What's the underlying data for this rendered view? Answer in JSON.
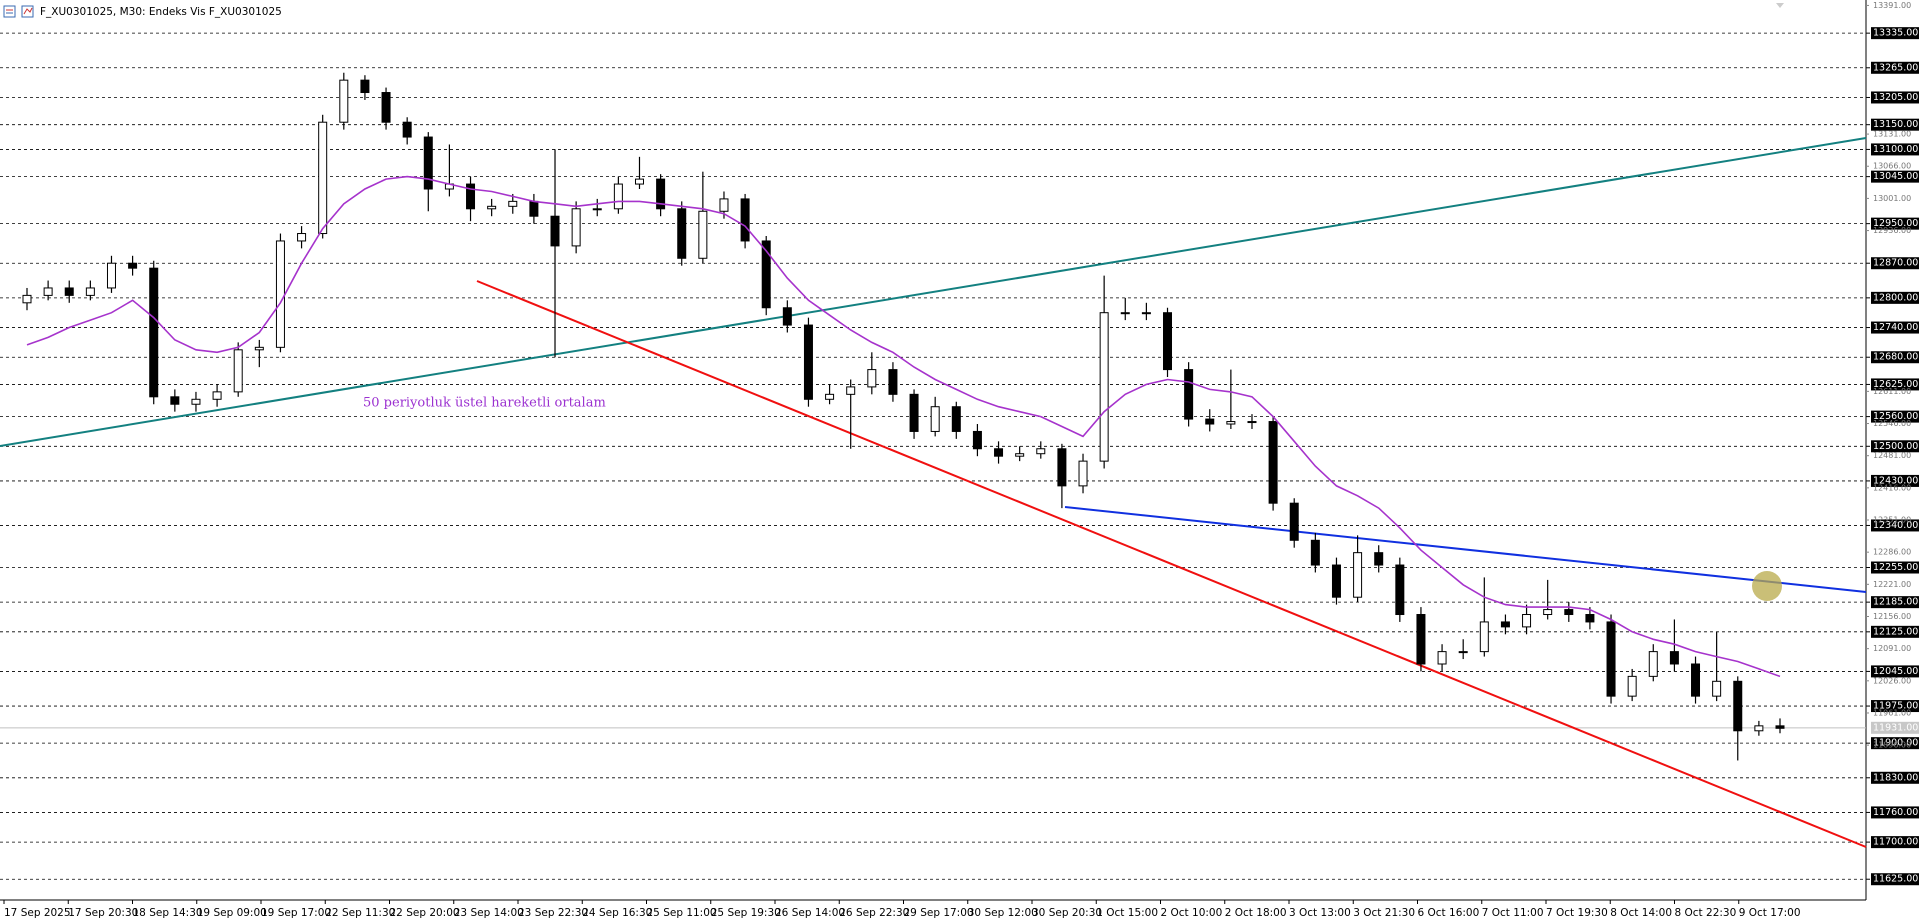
{
  "chart_data": {
    "type": "candlestick",
    "title": "F_XU0301025, M30:  Endeks Vis F_XU0301025",
    "annotation": "50 periyotluk üstel hareketli ortalam",
    "categories": [
      "17 Sep 2025",
      "17 Sep 20:30",
      "18 Sep 14:30",
      "19 Sep 09:00",
      "19 Sep 17:00",
      "22 Sep 11:30",
      "22 Sep 20:00",
      "23 Sep 14:00",
      "23 Sep 22:30",
      "24 Sep 16:30",
      "25 Sep 11:00",
      "25 Sep 19:30",
      "26 Sep 14:00",
      "26 Sep 22:30",
      "29 Sep 17:00",
      "30 Sep 12:00",
      "30 Sep 20:30",
      "1 Oct 15:00",
      "2 Oct 10:00",
      "2 Oct 18:00",
      "3 Oct 13:00",
      "3 Oct 21:30",
      "6 Oct 16:00",
      "7 Oct 11:00",
      "7 Oct 19:30",
      "8 Oct 14:00",
      "8 Oct 22:30",
      "9 Oct 17:00"
    ],
    "candles": [
      [
        12790,
        12820,
        12775,
        12805
      ],
      [
        12805,
        12835,
        12795,
        12820
      ],
      [
        12820,
        12835,
        12790,
        12805
      ],
      [
        12805,
        12835,
        12795,
        12820
      ],
      [
        12820,
        12885,
        12810,
        12870
      ],
      [
        12870,
        12885,
        12845,
        12860
      ],
      [
        12860,
        12875,
        12585,
        12600
      ],
      [
        12600,
        12615,
        12570,
        12585
      ],
      [
        12585,
        12610,
        12570,
        12595
      ],
      [
        12595,
        12625,
        12580,
        12610
      ],
      [
        12610,
        12710,
        12600,
        12695
      ],
      [
        12695,
        12715,
        12660,
        12700
      ],
      [
        12700,
        12930,
        12690,
        12915
      ],
      [
        12915,
        12945,
        12900,
        12930
      ],
      [
        12930,
        13170,
        12920,
        13155
      ],
      [
        13155,
        13255,
        13140,
        13240
      ],
      [
        13240,
        13250,
        13200,
        13215
      ],
      [
        13215,
        13225,
        13140,
        13155
      ],
      [
        13155,
        13165,
        13110,
        13125
      ],
      [
        13125,
        13135,
        12975,
        13020
      ],
      [
        13020,
        13110,
        13005,
        13030
      ],
      [
        13030,
        13045,
        12955,
        12980
      ],
      [
        12980,
        13000,
        12965,
        12985
      ],
      [
        12985,
        13010,
        12970,
        12995
      ],
      [
        12995,
        13010,
        12950,
        12965
      ],
      [
        12965,
        13100,
        12680,
        12905
      ],
      [
        12905,
        12995,
        12890,
        12980
      ],
      [
        12980,
        13000,
        12965,
        12980
      ],
      [
        12980,
        13045,
        12970,
        13030
      ],
      [
        13030,
        13085,
        13020,
        13040
      ],
      [
        13040,
        13050,
        12965,
        12980
      ],
      [
        12980,
        12995,
        12865,
        12880
      ],
      [
        12880,
        13055,
        12870,
        12975
      ],
      [
        12975,
        13015,
        12960,
        13000
      ],
      [
        13000,
        13010,
        12900,
        12915
      ],
      [
        12915,
        12925,
        12765,
        12780
      ],
      [
        12780,
        12795,
        12730,
        12745
      ],
      [
        12745,
        12760,
        12580,
        12595
      ],
      [
        12595,
        12625,
        12585,
        12605
      ],
      [
        12605,
        12635,
        12495,
        12620
      ],
      [
        12620,
        12690,
        12605,
        12655
      ],
      [
        12655,
        12670,
        12590,
        12605
      ],
      [
        12605,
        12615,
        12515,
        12530
      ],
      [
        12530,
        12600,
        12520,
        12580
      ],
      [
        12580,
        12590,
        12515,
        12530
      ],
      [
        12530,
        12545,
        12480,
        12495
      ],
      [
        12495,
        12510,
        12465,
        12480
      ],
      [
        12480,
        12500,
        12470,
        12485
      ],
      [
        12485,
        12510,
        12475,
        12495
      ],
      [
        12495,
        12505,
        12375,
        12420
      ],
      [
        12420,
        12485,
        12405,
        12470
      ],
      [
        12470,
        12845,
        12455,
        12770
      ],
      [
        12770,
        12800,
        12755,
        12770
      ],
      [
        12770,
        12790,
        12755,
        12770
      ],
      [
        12770,
        12780,
        12640,
        12655
      ],
      [
        12655,
        12670,
        12540,
        12555
      ],
      [
        12555,
        12575,
        12530,
        12545
      ],
      [
        12545,
        12655,
        12535,
        12550
      ],
      [
        12550,
        12565,
        12535,
        12550
      ],
      [
        12550,
        12560,
        12370,
        12385
      ],
      [
        12385,
        12395,
        12295,
        12310
      ],
      [
        12310,
        12325,
        12245,
        12260
      ],
      [
        12260,
        12275,
        12180,
        12195
      ],
      [
        12195,
        12320,
        12185,
        12285
      ],
      [
        12285,
        12300,
        12245,
        12260
      ],
      [
        12260,
        12275,
        12145,
        12160
      ],
      [
        12160,
        12175,
        12045,
        12060
      ],
      [
        12060,
        12100,
        12045,
        12085
      ],
      [
        12085,
        12110,
        12070,
        12085
      ],
      [
        12085,
        12235,
        12075,
        12145
      ],
      [
        12145,
        12160,
        12120,
        12135
      ],
      [
        12135,
        12180,
        12120,
        12160
      ],
      [
        12160,
        12230,
        12150,
        12170
      ],
      [
        12170,
        12185,
        12145,
        12160
      ],
      [
        12160,
        12175,
        12130,
        12145
      ],
      [
        12145,
        12160,
        11980,
        11995
      ],
      [
        11995,
        12050,
        11985,
        12035
      ],
      [
        12035,
        12100,
        12025,
        12085
      ],
      [
        12085,
        12150,
        12045,
        12060
      ],
      [
        12060,
        12075,
        11980,
        11995
      ],
      [
        11995,
        12125,
        11985,
        12025
      ],
      [
        12025,
        12035,
        11865,
        11925
      ],
      [
        11925,
        11945,
        11915,
        11935
      ],
      [
        11935,
        11950,
        11920,
        11930
      ]
    ],
    "candle_colors": {
      "up": "#ffffff",
      "down": "#000000",
      "outline": "#000000"
    },
    "ema": {
      "color": "#a633cc",
      "values": [
        12705,
        12720,
        12740,
        12755,
        12770,
        12795,
        12760,
        12715,
        12695,
        12690,
        12700,
        12730,
        12790,
        12870,
        12940,
        12990,
        13020,
        13040,
        13045,
        13040,
        13030,
        13020,
        13015,
        13005,
        12995,
        12990,
        12985,
        12990,
        12995,
        12995,
        12990,
        12985,
        12980,
        12970,
        12945,
        12895,
        12840,
        12795,
        12765,
        12735,
        12710,
        12690,
        12660,
        12635,
        12615,
        12595,
        12580,
        12570,
        12560,
        12540,
        12520,
        12570,
        12605,
        12625,
        12635,
        12630,
        12615,
        12610,
        12600,
        12560,
        12510,
        12460,
        12420,
        12400,
        12375,
        12335,
        12290,
        12255,
        12220,
        12195,
        12180,
        12175,
        12175,
        12175,
        12170,
        12150,
        12125,
        12110,
        12100,
        12085,
        12075,
        12065,
        12050,
        12035
      ]
    },
    "ylim": [
      11583,
      13402
    ],
    "yticks": [
      {
        "value": 13335,
        "label": "13335.00"
      },
      {
        "value": 13265,
        "label": "13265.00"
      },
      {
        "value": 13205,
        "label": "13205.00"
      },
      {
        "value": 13150,
        "label": "13150.00"
      },
      {
        "value": 13100,
        "label": "13100.00"
      },
      {
        "value": 13045,
        "label": "13045.00"
      },
      {
        "value": 12950,
        "label": "12950.00"
      },
      {
        "value": 12870,
        "label": "12870.00"
      },
      {
        "value": 12800,
        "label": "12800.00"
      },
      {
        "value": 12740,
        "label": "12740.00"
      },
      {
        "value": 12680,
        "label": "12680.00"
      },
      {
        "value": 12625,
        "label": "12625.00"
      },
      {
        "value": 12560,
        "label": "12560.00"
      },
      {
        "value": 12500,
        "label": "12500.00"
      },
      {
        "value": 12430,
        "label": "12430.00"
      },
      {
        "value": 12340,
        "label": "12340.00"
      },
      {
        "value": 12255,
        "label": "12255.00"
      },
      {
        "value": 12185,
        "label": "12185.00"
      },
      {
        "value": 12125,
        "label": "12125.00"
      },
      {
        "value": 12045,
        "label": "12045.00"
      },
      {
        "value": 11975,
        "label": "11975.00"
      },
      {
        "value": 11900,
        "label": "11900.00"
      },
      {
        "value": 11830,
        "label": "11830.00"
      },
      {
        "value": 11760,
        "label": "11760.00"
      },
      {
        "value": 11700,
        "label": "11700.00"
      },
      {
        "value": 11625,
        "label": "11625.00"
      }
    ],
    "yticks_minor": [
      {
        "value": 13391,
        "label": "13391.00"
      },
      {
        "value": 13131,
        "label": "13131.00"
      },
      {
        "value": 13066,
        "label": "13066.00"
      },
      {
        "value": 13001,
        "label": "13001.00"
      },
      {
        "value": 12936,
        "label": "12936.00"
      },
      {
        "value": 12611,
        "label": "12611.00"
      },
      {
        "value": 12546,
        "label": "12546.00"
      },
      {
        "value": 12481,
        "label": "12481.00"
      },
      {
        "value": 12416,
        "label": "12416.00"
      },
      {
        "value": 12351,
        "label": "12351.00"
      },
      {
        "value": 12286,
        "label": "12286.00"
      },
      {
        "value": 12221,
        "label": "12221.00"
      },
      {
        "value": 12156,
        "label": "12156.00"
      },
      {
        "value": 12091,
        "label": "12091.00"
      },
      {
        "value": 12026,
        "label": "12026.00"
      },
      {
        "value": 11961,
        "label": "11961.00"
      },
      {
        "value": 11896,
        "label": "11896.00"
      }
    ],
    "current_price": {
      "value": 11931,
      "label": "11931.00"
    },
    "grid": true
  }
}
